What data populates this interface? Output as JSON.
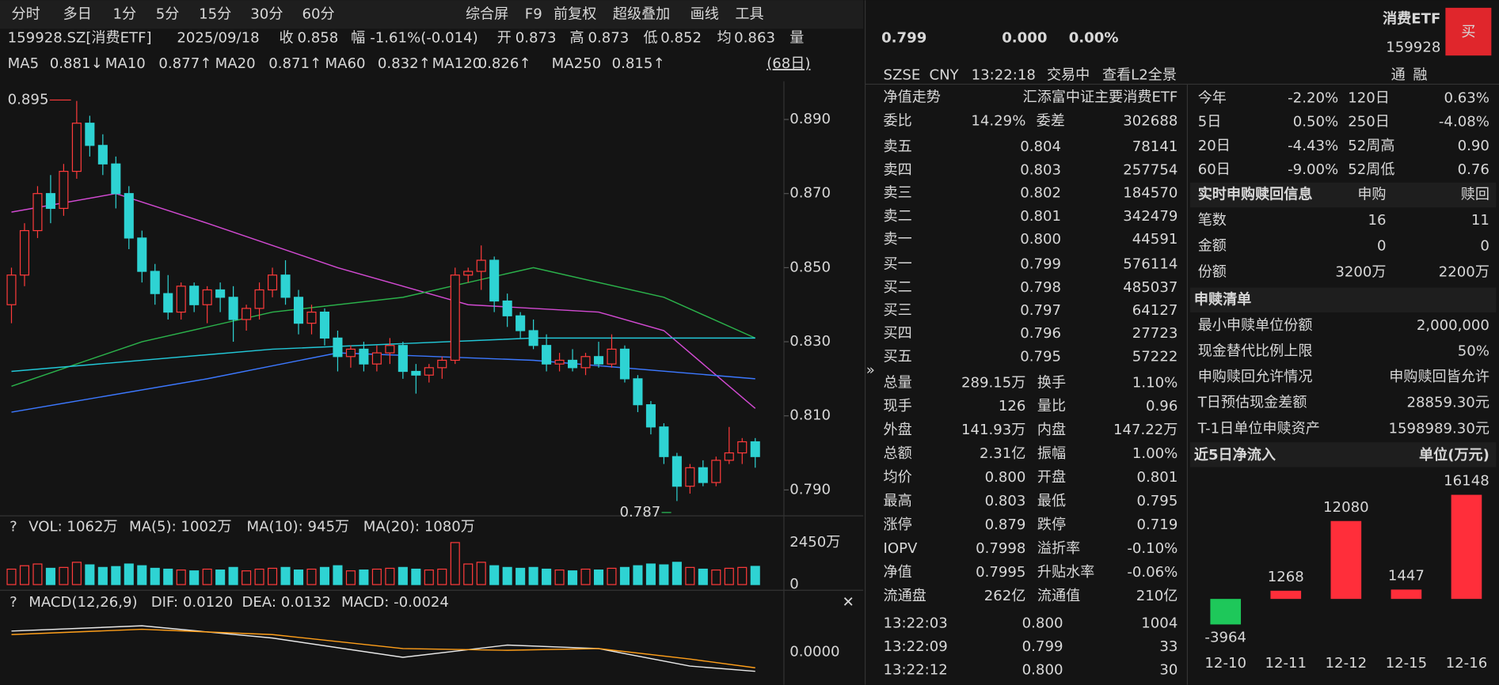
{
  "toolbar": [
    "分时",
    "多日",
    "1分",
    "5分",
    "15分",
    "30分",
    "60分",
    "综合屏",
    "F9",
    "前复权",
    "超级叠加",
    "画线",
    "工具"
  ],
  "info": {
    "code": "159928.SZ[消费ETF]",
    "date": "2025/09/18",
    "close_label": "收",
    "close": "0.858",
    "range_label": "幅",
    "range": "-1.61%(-0.014)",
    "open_label": "开",
    "open": "0.873",
    "high_label": "高",
    "high": "0.873",
    "low_label": "低",
    "low": "0.852",
    "avg_label": "均",
    "avg": "0.863",
    "vol_label": "量"
  },
  "ma_legend": [
    {
      "name": "MA5",
      "value": "0.881↓"
    },
    {
      "name": "MA10",
      "value": "0.877↑"
    },
    {
      "name": "MA20",
      "value": "0.871↑"
    },
    {
      "name": "MA60",
      "value": "0.832↑"
    },
    {
      "name": "MA120",
      "value": "0.826↑"
    },
    {
      "name": "MA250",
      "value": "0.815↑"
    }
  ],
  "days": "(68日)",
  "chart_data": [
    {
      "type": "candlestick",
      "candles": [
        [
          0.84,
          0.85,
          0.835,
          0.848
        ],
        [
          0.848,
          0.862,
          0.845,
          0.86
        ],
        [
          0.86,
          0.872,
          0.858,
          0.87
        ],
        [
          0.87,
          0.875,
          0.862,
          0.866
        ],
        [
          0.866,
          0.878,
          0.864,
          0.876
        ],
        [
          0.876,
          0.895,
          0.874,
          0.889
        ],
        [
          0.889,
          0.891,
          0.88,
          0.883
        ],
        [
          0.883,
          0.886,
          0.875,
          0.878
        ],
        [
          0.878,
          0.88,
          0.866,
          0.87
        ],
        [
          0.87,
          0.872,
          0.855,
          0.858
        ],
        [
          0.858,
          0.86,
          0.846,
          0.849
        ],
        [
          0.849,
          0.851,
          0.84,
          0.843
        ],
        [
          0.843,
          0.848,
          0.836,
          0.838
        ],
        [
          0.838,
          0.846,
          0.836,
          0.845
        ],
        [
          0.845,
          0.846,
          0.838,
          0.84
        ],
        [
          0.84,
          0.845,
          0.835,
          0.844
        ],
        [
          0.844,
          0.846,
          0.838,
          0.842
        ],
        [
          0.842,
          0.845,
          0.83,
          0.836
        ],
        [
          0.836,
          0.84,
          0.833,
          0.839
        ],
        [
          0.839,
          0.846,
          0.836,
          0.844
        ],
        [
          0.844,
          0.85,
          0.842,
          0.848
        ],
        [
          0.848,
          0.852,
          0.84,
          0.842
        ],
        [
          0.842,
          0.844,
          0.832,
          0.835
        ],
        [
          0.835,
          0.84,
          0.832,
          0.838
        ],
        [
          0.838,
          0.839,
          0.829,
          0.831
        ],
        [
          0.831,
          0.833,
          0.822,
          0.826
        ],
        [
          0.826,
          0.829,
          0.823,
          0.828
        ],
        [
          0.828,
          0.83,
          0.822,
          0.824
        ],
        [
          0.824,
          0.829,
          0.822,
          0.827
        ],
        [
          0.827,
          0.831,
          0.824,
          0.829
        ],
        [
          0.829,
          0.83,
          0.82,
          0.822
        ],
        [
          0.822,
          0.824,
          0.816,
          0.821
        ],
        [
          0.821,
          0.824,
          0.819,
          0.823
        ],
        [
          0.823,
          0.826,
          0.82,
          0.825
        ],
        [
          0.825,
          0.85,
          0.824,
          0.848
        ],
        [
          0.848,
          0.85,
          0.846,
          0.849
        ],
        [
          0.849,
          0.856,
          0.844,
          0.852
        ],
        [
          0.852,
          0.853,
          0.838,
          0.841
        ],
        [
          0.841,
          0.843,
          0.834,
          0.837
        ],
        [
          0.837,
          0.838,
          0.831,
          0.833
        ],
        [
          0.833,
          0.836,
          0.828,
          0.829
        ],
        [
          0.829,
          0.832,
          0.822,
          0.824
        ],
        [
          0.824,
          0.827,
          0.822,
          0.825
        ],
        [
          0.825,
          0.828,
          0.822,
          0.823
        ],
        [
          0.823,
          0.827,
          0.821,
          0.826
        ],
        [
          0.826,
          0.83,
          0.823,
          0.824
        ],
        [
          0.824,
          0.832,
          0.823,
          0.828
        ],
        [
          0.828,
          0.829,
          0.819,
          0.82
        ],
        [
          0.82,
          0.821,
          0.811,
          0.813
        ],
        [
          0.813,
          0.814,
          0.805,
          0.807
        ],
        [
          0.807,
          0.808,
          0.797,
          0.799
        ],
        [
          0.799,
          0.8,
          0.787,
          0.791
        ],
        [
          0.791,
          0.797,
          0.789,
          0.796
        ],
        [
          0.796,
          0.798,
          0.791,
          0.792
        ],
        [
          0.792,
          0.799,
          0.791,
          0.798
        ],
        [
          0.798,
          0.807,
          0.797,
          0.8
        ],
        [
          0.8,
          0.804,
          0.797,
          0.803
        ],
        [
          0.803,
          0.804,
          0.796,
          0.799
        ]
      ],
      "up_color": "#ff3b3b",
      "down_color": "#2ed3d3",
      "ylim": [
        0.7843,
        0.9003
      ],
      "yticks": [
        {
          "value": 0.89,
          "label": "0.890"
        },
        {
          "value": 0.87,
          "label": "0.870"
        },
        {
          "value": 0.85,
          "label": "0.850"
        },
        {
          "value": 0.83,
          "label": "0.830"
        },
        {
          "value": 0.81,
          "label": "0.810"
        },
        {
          "value": 0.79,
          "label": "0.790"
        }
      ],
      "ma_lines": [
        {
          "name": "MA20",
          "color": "#d24ad2",
          "x": [
            0,
            8,
            15,
            25,
            35,
            45,
            50,
            57
          ],
          "values": [
            0.865,
            0.87,
            0.862,
            0.85,
            0.84,
            0.838,
            0.833,
            0.812
          ]
        },
        {
          "name": "MA60",
          "color": "#2bb24b",
          "x": [
            0,
            10,
            20,
            30,
            40,
            50,
            57
          ],
          "values": [
            0.818,
            0.83,
            0.838,
            0.842,
            0.85,
            0.842,
            0.831
          ]
        },
        {
          "name": "MA120",
          "color": "#22c8d8",
          "x": [
            0,
            20,
            40,
            57
          ],
          "values": [
            0.822,
            0.828,
            0.831,
            0.831
          ]
        },
        {
          "name": "MA250",
          "color": "#3c78ff",
          "x": [
            0,
            15,
            25,
            40,
            57
          ],
          "values": [
            0.811,
            0.82,
            0.827,
            0.825,
            0.82
          ]
        }
      ],
      "annotations": [
        {
          "label": "0.895",
          "value": 0.895,
          "index": 5
        },
        {
          "label": "0.787",
          "value": 0.787,
          "index": 51
        }
      ],
      "volume": {
        "title": "VOL: 1062万",
        "ma": [
          "MA(5): 1002万",
          "MA(10): 945万",
          "MA(20): 1080万"
        ],
        "values": [
          900,
          1100,
          1200,
          950,
          1000,
          1300,
          1150,
          1000,
          1050,
          1200,
          1100,
          950,
          900,
          850,
          800,
          900,
          850,
          1000,
          800,
          900,
          950,
          1000,
          850,
          900,
          1000,
          1100,
          800,
          850,
          900,
          950,
          1000,
          900,
          850,
          900,
          2450,
          1200,
          1300,
          1100,
          1000,
          950,
          1000,
          900,
          850,
          800,
          900,
          850,
          950,
          1000,
          1100,
          1200,
          1150,
          1300,
          1000,
          900,
          850,
          950,
          1000,
          1062
        ],
        "ylim": [
          0,
          2450
        ],
        "yticks": [
          {
            "value": 2450,
            "label": "2450万"
          },
          0
        ]
      },
      "macd": {
        "title": "MACD(12,26,9)",
        "dif_label": "DIF: 0.0120",
        "dea_label": "DEA: 0.0132",
        "macd_label": "MACD: -0.0024",
        "x": [
          0,
          10,
          20,
          30,
          38,
          45,
          52,
          57
        ],
        "dif": [
          0.012,
          0.015,
          0.008,
          -0.003,
          0.004,
          0.002,
          -0.008,
          -0.011
        ],
        "dea": [
          0.01,
          0.013,
          0.01,
          0.002,
          0.001,
          0.002,
          -0.004,
          -0.009
        ],
        "ylim": [
          -0.016,
          0.02
        ],
        "yticks": [
          {
            "value": 0,
            "label": "0.0000"
          }
        ]
      }
    },
    {
      "type": "bar",
      "title": "近5日净流入",
      "unit": "单位(万元)",
      "categories": [
        "12-10",
        "12-11",
        "12-12",
        "12-15",
        "12-16"
      ],
      "values": [
        -3964,
        1268,
        12080,
        1447,
        16148
      ],
      "pos_color": "#ff2e3a",
      "neg_color": "#1ec85a"
    }
  ],
  "quote": {
    "price": "0.799",
    "change": "0.000",
    "pct": "0.00%",
    "name": "消费ETF",
    "code": "159928",
    "buy": "买",
    "exchange": "SZSE",
    "currency": "CNY",
    "time": "13:22:18",
    "status": "交易中",
    "l2": "查看L2全景",
    "tong": "通",
    "rong": "融"
  },
  "nav": {
    "label": "净值走势",
    "fund": "汇添富中证主要消费ETF"
  },
  "weibi": [
    "委比",
    "14.29%",
    "委差",
    "302688"
  ],
  "asks": [
    [
      "卖五",
      "0.804",
      "78141"
    ],
    [
      "卖四",
      "0.803",
      "257754"
    ],
    [
      "卖三",
      "0.802",
      "184570"
    ],
    [
      "卖二",
      "0.801",
      "342479"
    ],
    [
      "卖一",
      "0.800",
      "44591"
    ]
  ],
  "bids": [
    [
      "买一",
      "0.799",
      "576114"
    ],
    [
      "买二",
      "0.798",
      "485037"
    ],
    [
      "买三",
      "0.797",
      "64127"
    ],
    [
      "买四",
      "0.796",
      "27723"
    ],
    [
      "买五",
      "0.795",
      "57222"
    ]
  ],
  "stats": [
    [
      "总量",
      "289.15万",
      "换手",
      "1.10%"
    ],
    [
      "现手",
      "126",
      "量比",
      "0.96"
    ],
    [
      "外盘",
      "141.93万",
      "内盘",
      "147.22万"
    ],
    [
      "总额",
      "2.31亿",
      "振幅",
      "1.00%"
    ],
    [
      "均价",
      "0.800",
      "开盘",
      "0.801"
    ],
    [
      "最高",
      "0.803",
      "最低",
      "0.795"
    ],
    [
      "涨停",
      "0.879",
      "跌停",
      "0.719"
    ],
    [
      "IOPV",
      "0.7998",
      "溢折率",
      "-0.10%"
    ],
    [
      "净值",
      "0.7995",
      "升贴水率",
      "-0.06%"
    ],
    [
      "流通盘",
      "262亿",
      "流通值",
      "210亿"
    ]
  ],
  "ticks": [
    [
      "13:22:03",
      "0.800",
      "1004"
    ],
    [
      "13:22:09",
      "0.799",
      "33"
    ],
    [
      "13:22:12",
      "0.800",
      "30"
    ]
  ],
  "perf": [
    [
      "今年",
      "-2.20%",
      "120日",
      "0.63%"
    ],
    [
      "5日",
      "0.50%",
      "250日",
      "-4.08%"
    ],
    [
      "20日",
      "-4.43%",
      "52周高",
      "0.90"
    ],
    [
      "60日",
      "-9.00%",
      "52周低",
      "0.76"
    ]
  ],
  "creation": {
    "title": "实时申购赎回信息",
    "cols": [
      "申购",
      "赎回"
    ],
    "rows": [
      [
        "笔数",
        "16",
        "11"
      ],
      [
        "金额",
        "0",
        "0"
      ],
      [
        "份额",
        "3200万",
        "2200万"
      ]
    ]
  },
  "list": {
    "title": "申赎清单",
    "rows": [
      [
        "最小申赎单位份额",
        "2,000,000"
      ],
      [
        "现金替代比例上限",
        "50%"
      ],
      [
        "申购赎回允许情况",
        "申购赎回皆允许"
      ],
      [
        "T日预估现金差额",
        "28859.30元"
      ],
      [
        "T-1日单位申赎资产",
        "1598989.30元"
      ]
    ]
  }
}
